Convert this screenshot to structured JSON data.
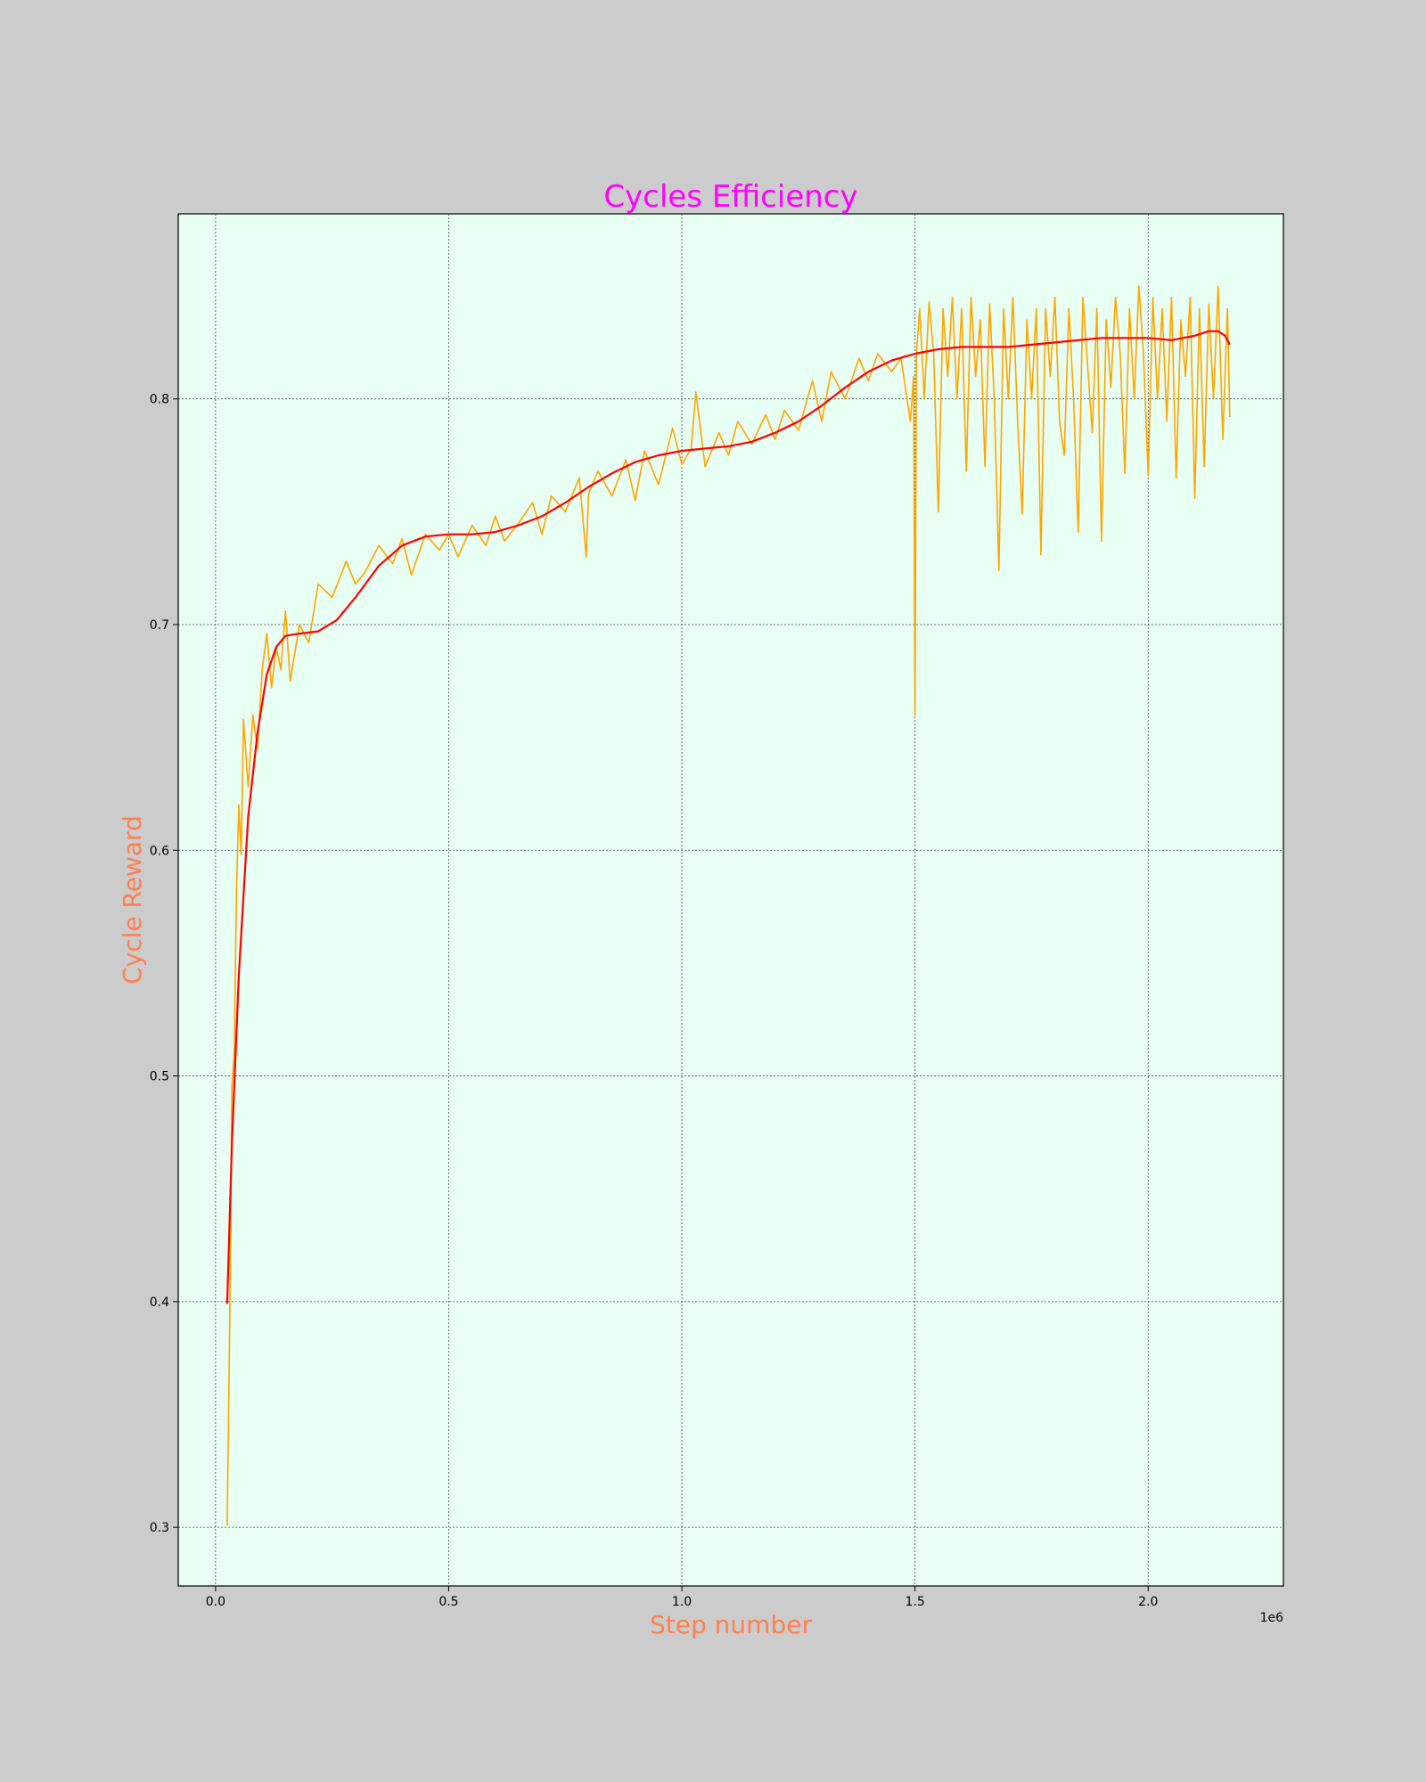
{
  "chart_data": {
    "type": "line",
    "title": "Cycles Efficiency",
    "xlabel": "Step number",
    "ylabel": "Cycle Reward",
    "x_offset_label": "1e6",
    "xlim": [
      -80000,
      2290000
    ],
    "ylim": [
      0.274,
      0.882
    ],
    "x_ticks": [
      0,
      500000,
      1000000,
      1500000,
      2000000
    ],
    "x_tick_labels": [
      "0.0",
      "0.5",
      "1.0",
      "1.5",
      "2.0"
    ],
    "y_ticks": [
      0.3,
      0.4,
      0.5,
      0.6,
      0.7,
      0.8
    ],
    "y_tick_labels": [
      "0.3",
      "0.4",
      "0.5",
      "0.6",
      "0.7",
      "0.8"
    ],
    "grid": true,
    "colors": {
      "raw": "#ffa500",
      "smooth": "#ff0000",
      "title": "#ff00ff",
      "axis_labels": "#ff7f50",
      "plot_background": "#e8fff3",
      "figure_background": "#cccccc"
    },
    "series": [
      {
        "style": "raw",
        "x": [
          25000,
          30000,
          35000,
          40000,
          45000,
          50000,
          55000,
          60000,
          70000,
          80000,
          90000,
          100000,
          110000,
          120000,
          130000,
          140000,
          150000,
          160000,
          180000,
          200000,
          220000,
          250000,
          280000,
          300000,
          320000,
          350000,
          380000,
          400000,
          420000,
          450000,
          480000,
          500000,
          520000,
          550000,
          580000,
          600000,
          620000,
          650000,
          680000,
          700000,
          720000,
          750000,
          780000,
          795000,
          800000,
          820000,
          850000,
          880000,
          900000,
          920000,
          950000,
          980000,
          1000000,
          1020000,
          1030000,
          1050000,
          1080000,
          1100000,
          1120000,
          1150000,
          1180000,
          1200000,
          1220000,
          1250000,
          1280000,
          1300000,
          1320000,
          1350000,
          1380000,
          1400000,
          1420000,
          1450000,
          1470000,
          1490000,
          1497000,
          1500000,
          1503000,
          1510000,
          1520000,
          1530000,
          1540000,
          1550000,
          1560000,
          1570000,
          1580000,
          1590000,
          1600000,
          1610000,
          1620000,
          1630000,
          1640000,
          1650000,
          1660000,
          1670000,
          1680000,
          1690000,
          1700000,
          1710000,
          1720000,
          1730000,
          1740000,
          1750000,
          1760000,
          1770000,
          1780000,
          1790000,
          1800000,
          1810000,
          1820000,
          1830000,
          1840000,
          1850000,
          1860000,
          1870000,
          1880000,
          1890000,
          1900000,
          1910000,
          1920000,
          1930000,
          1940000,
          1950000,
          1960000,
          1970000,
          1980000,
          1990000,
          2000000,
          2010000,
          2020000,
          2030000,
          2040000,
          2050000,
          2060000,
          2070000,
          2080000,
          2090000,
          2100000,
          2110000,
          2120000,
          2130000,
          2140000,
          2150000,
          2160000,
          2170000,
          2175000
        ],
        "y": [
          0.301,
          0.385,
          0.495,
          0.51,
          0.583,
          0.62,
          0.598,
          0.658,
          0.628,
          0.66,
          0.645,
          0.68,
          0.696,
          0.672,
          0.69,
          0.68,
          0.706,
          0.675,
          0.7,
          0.692,
          0.718,
          0.712,
          0.728,
          0.718,
          0.723,
          0.735,
          0.727,
          0.738,
          0.722,
          0.74,
          0.733,
          0.74,
          0.73,
          0.744,
          0.735,
          0.748,
          0.737,
          0.745,
          0.754,
          0.74,
          0.757,
          0.75,
          0.765,
          0.73,
          0.758,
          0.768,
          0.757,
          0.773,
          0.755,
          0.777,
          0.762,
          0.787,
          0.771,
          0.778,
          0.803,
          0.77,
          0.785,
          0.775,
          0.79,
          0.78,
          0.793,
          0.782,
          0.795,
          0.786,
          0.808,
          0.79,
          0.812,
          0.8,
          0.818,
          0.808,
          0.82,
          0.812,
          0.818,
          0.79,
          0.81,
          0.66,
          0.82,
          0.84,
          0.8,
          0.843,
          0.82,
          0.75,
          0.84,
          0.81,
          0.845,
          0.8,
          0.84,
          0.768,
          0.845,
          0.81,
          0.835,
          0.77,
          0.842,
          0.8,
          0.724,
          0.84,
          0.8,
          0.845,
          0.79,
          0.749,
          0.835,
          0.8,
          0.84,
          0.731,
          0.84,
          0.81,
          0.845,
          0.79,
          0.775,
          0.84,
          0.8,
          0.741,
          0.845,
          0.815,
          0.785,
          0.84,
          0.737,
          0.835,
          0.805,
          0.845,
          0.82,
          0.767,
          0.84,
          0.8,
          0.85,
          0.82,
          0.766,
          0.845,
          0.8,
          0.84,
          0.79,
          0.845,
          0.765,
          0.835,
          0.81,
          0.845,
          0.756,
          0.84,
          0.77,
          0.842,
          0.8,
          0.85,
          0.782,
          0.84,
          0.792
        ]
      },
      {
        "style": "smooth",
        "x": [
          25000,
          35000,
          50000,
          70000,
          90000,
          110000,
          130000,
          150000,
          180000,
          220000,
          260000,
          300000,
          350000,
          400000,
          450000,
          500000,
          550000,
          600000,
          650000,
          700000,
          750000,
          800000,
          850000,
          900000,
          950000,
          1000000,
          1050000,
          1100000,
          1150000,
          1200000,
          1250000,
          1300000,
          1350000,
          1400000,
          1450000,
          1500000,
          1550000,
          1600000,
          1650000,
          1700000,
          1750000,
          1800000,
          1850000,
          1900000,
          1950000,
          2000000,
          2050000,
          2100000,
          2130000,
          2150000,
          2165000,
          2175000
        ],
        "y": [
          0.399,
          0.47,
          0.545,
          0.615,
          0.652,
          0.678,
          0.69,
          0.695,
          0.696,
          0.697,
          0.702,
          0.712,
          0.726,
          0.735,
          0.739,
          0.74,
          0.74,
          0.741,
          0.744,
          0.748,
          0.754,
          0.761,
          0.767,
          0.772,
          0.775,
          0.777,
          0.778,
          0.779,
          0.781,
          0.785,
          0.79,
          0.797,
          0.805,
          0.812,
          0.817,
          0.82,
          0.822,
          0.823,
          0.823,
          0.823,
          0.824,
          0.825,
          0.826,
          0.827,
          0.827,
          0.827,
          0.826,
          0.828,
          0.83,
          0.83,
          0.828,
          0.824
        ]
      }
    ]
  }
}
